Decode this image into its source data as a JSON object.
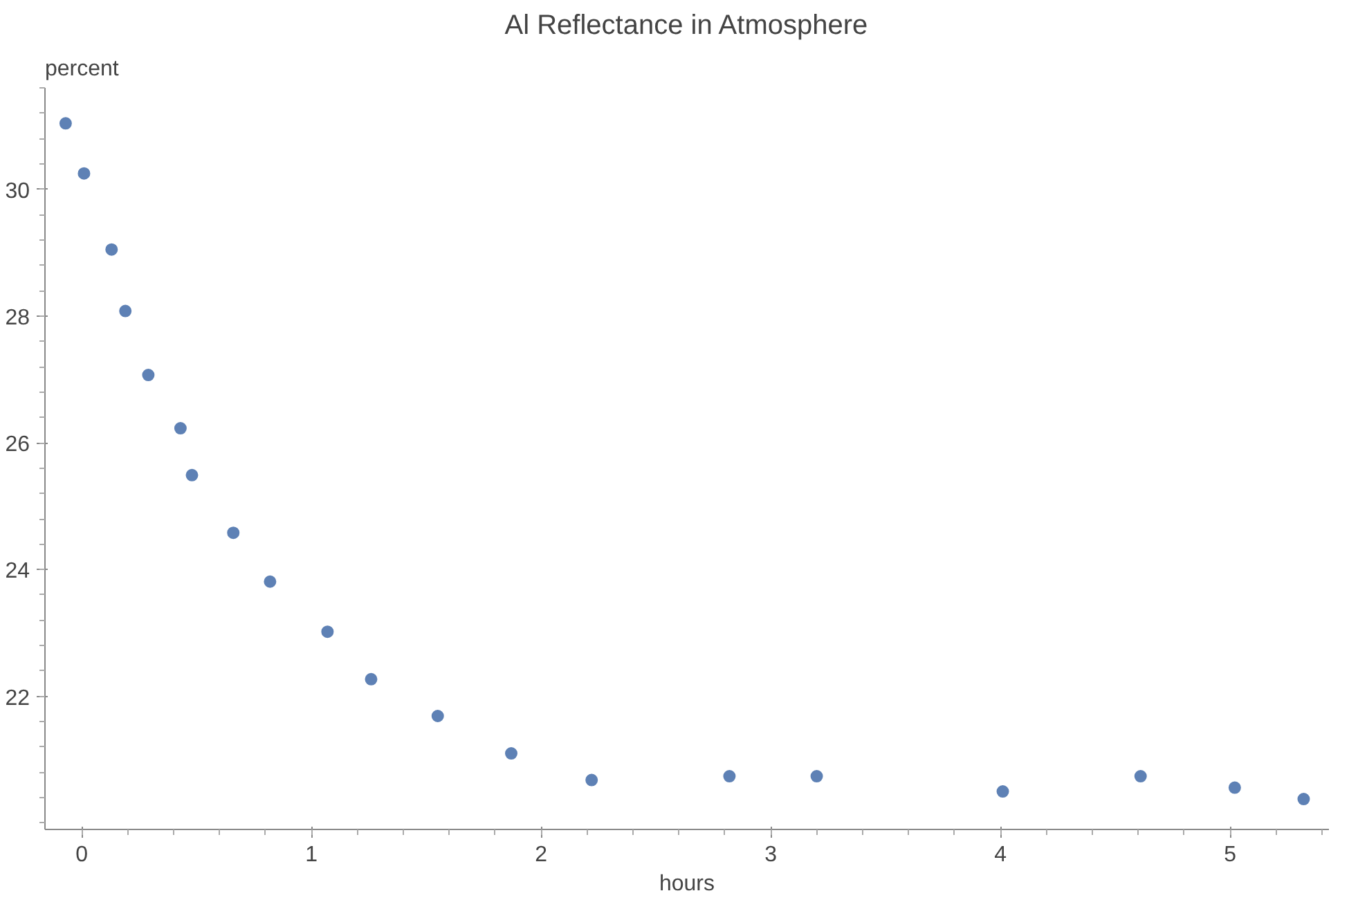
{
  "chart_data": {
    "type": "scatter",
    "title": "Al Reflectance in Atmosphere",
    "xlabel": "hours",
    "ylabel": "percent",
    "x": [
      -0.07,
      0.01,
      0.13,
      0.19,
      0.29,
      0.43,
      0.48,
      0.66,
      0.82,
      1.07,
      1.26,
      1.55,
      1.87,
      2.22,
      2.82,
      3.2,
      4.01,
      4.61,
      5.02,
      5.32
    ],
    "series": [
      {
        "color": "#5e81b5",
        "values": [
          31.04,
          30.25,
          29.05,
          28.08,
          27.07,
          26.23,
          25.49,
          24.58,
          23.81,
          23.02,
          22.27,
          21.69,
          21.1,
          20.68,
          20.74,
          20.74,
          20.5,
          20.74,
          20.56,
          20.38
        ]
      }
    ],
    "xlim": [
      -0.16,
      5.43
    ],
    "ylim": [
      19.9,
      31.6
    ],
    "xticks": [
      0,
      1,
      2,
      3,
      4,
      5
    ],
    "yticks": [
      22,
      24,
      26,
      28,
      30
    ],
    "marker": "circle"
  }
}
